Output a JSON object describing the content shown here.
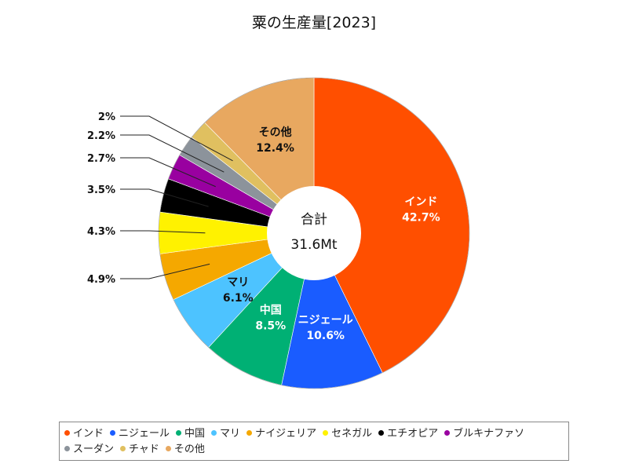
{
  "chart_data": {
    "type": "pie",
    "title": "粟の生産量[2023]",
    "center_label": {
      "title": "合計",
      "value": "31.6Mt"
    },
    "categories": [
      "インド",
      "ニジェール",
      "中国",
      "マリ",
      "ナイジェリア",
      "セネガル",
      "エチオピア",
      "ブルキナファソ",
      "スーダン",
      "チャド",
      "その他"
    ],
    "values": [
      42.7,
      10.6,
      8.5,
      6.1,
      4.9,
      4.3,
      3.5,
      2.7,
      2.2,
      2.0,
      12.4
    ],
    "labels": [
      "42.7%",
      "10.6%",
      "8.5%",
      "6.1%",
      "4.9%",
      "4.3%",
      "3.5%",
      "2.7%",
      "2.2%",
      "2%",
      "12.4%"
    ],
    "colors": [
      "#ff4f00",
      "#1a5cff",
      "#00b074",
      "#4dc3ff",
      "#f5a800",
      "#fff200",
      "#000000",
      "#9900a0",
      "#8c939b",
      "#e0c060",
      "#e8a860"
    ],
    "legend_position": "bottom"
  }
}
